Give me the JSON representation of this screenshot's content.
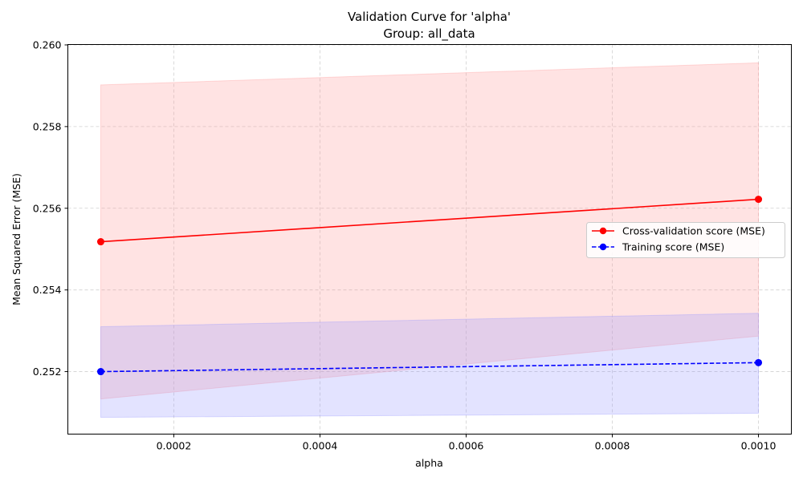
{
  "chart_data": {
    "type": "line",
    "title": "Validation Curve for 'alpha'",
    "subtitle": "Group: all_data",
    "xlabel": "alpha",
    "ylabel": "Mean Squared Error (MSE)",
    "xlim": [
      5.5e-05,
      0.001045
    ],
    "ylim": [
      0.25047,
      0.26001
    ],
    "xticks": [
      0.0002,
      0.0004,
      0.0006,
      0.0008,
      0.001
    ],
    "xtick_labels": [
      "0.0002",
      "0.0004",
      "0.0006",
      "0.0008",
      "0.0010"
    ],
    "yticks": [
      0.252,
      0.254,
      0.256,
      0.258,
      0.26
    ],
    "ytick_labels": [
      "0.252",
      "0.254",
      "0.256",
      "0.258",
      "0.260"
    ],
    "grid": true,
    "legend_position": "center-right",
    "series": [
      {
        "name": "Cross-validation score (MSE)",
        "color": "#ff0000",
        "band_color": "#ff9999",
        "line_style": "solid",
        "marker": "circle",
        "x": [
          0.0001,
          0.001
        ],
        "y": [
          0.25518,
          0.25622
        ],
        "lower": [
          0.25133,
          0.25287
        ],
        "upper": [
          0.25902,
          0.25956
        ]
      },
      {
        "name": "Training score (MSE)",
        "color": "#0000ff",
        "band_color": "#9999ff",
        "line_style": "dashed",
        "marker": "circle",
        "x": [
          0.0001,
          0.001
        ],
        "y": [
          0.252,
          0.25222
        ],
        "lower": [
          0.25088,
          0.25098
        ],
        "upper": [
          0.2531,
          0.25343
        ]
      }
    ]
  }
}
